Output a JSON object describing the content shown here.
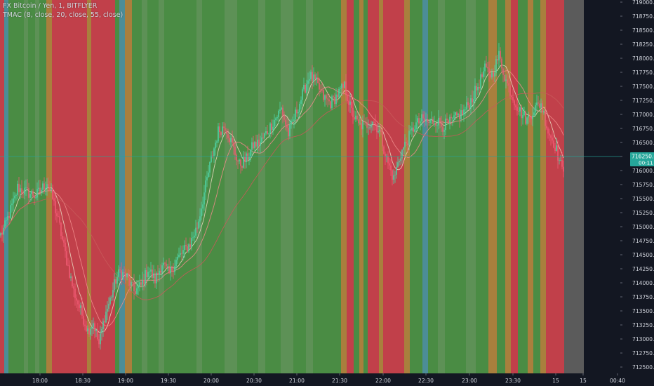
{
  "header": {
    "symbol_line": "FX Bitcoin / Yen, 1, BITFLYER",
    "indicator_line": "TMAC (8, close, 20, close, 55, close)"
  },
  "colors": {
    "background": "#131722",
    "bull_zone": "#4a8c44",
    "bull_zone_light": "#5d9156",
    "bear_zone": "#c1404a",
    "neutral_zone": "#a97f3d",
    "blue_zone": "#4c8d97",
    "empty_zone": "#5b5b5b",
    "candle_up": "#4fd1a3",
    "candle_down": "#ef5a72",
    "ma_fast": "#e8d7bf",
    "ma_mid": "#f08b8b",
    "ma_slow": "#c85a5a",
    "last_price_line": "#26a69a",
    "last_price_badge": "#26a69a",
    "axis_text": "#d1d4dc"
  },
  "price_axis": {
    "labels": [
      "719000.00",
      "718750.00",
      "718500.00",
      "718250.00",
      "718000.00",
      "717750.00",
      "717500.00",
      "717250.00",
      "717000.00",
      "716750.00",
      "716500.00",
      "716250.00",
      "716000.00",
      "715750.00",
      "715500.00",
      "715250.00",
      "715000.00",
      "714750.00",
      "714500.00",
      "714250.00",
      "714000.00",
      "713750.00",
      "713500.00",
      "713250.00",
      "713000.00",
      "712750.00",
      "712500.00"
    ],
    "last_price": "716250.00",
    "countdown": "00:11"
  },
  "time_axis": {
    "labels": [
      "18:00",
      "18:30",
      "19:00",
      "19:30",
      "20:00",
      "20:30",
      "21:00",
      "21:30",
      "22:00",
      "22:30",
      "23:00",
      "23:30",
      "15",
      "15",
      "00:40"
    ]
  },
  "chart_data": {
    "type": "candlestick",
    "title": "FX Bitcoin / Yen, 1, BITFLYER",
    "indicator": "TMAC (8, close, 20, close, 55, close)",
    "timeframe_minutes": 1,
    "ylim": [
      712400,
      719100
    ],
    "grid": false,
    "legend_position": "top-left",
    "anchors": [
      [
        "17:35",
        714850
      ],
      [
        "17:38",
        715000
      ],
      [
        "17:42",
        715300
      ],
      [
        "17:45",
        715500
      ],
      [
        "17:47",
        715700
      ],
      [
        "17:50",
        715650
      ],
      [
        "17:55",
        715600
      ],
      [
        "18:00",
        715550
      ],
      [
        "18:05",
        715700
      ],
      [
        "18:08",
        715800
      ],
      [
        "18:12",
        715500
      ],
      [
        "18:17",
        715000
      ],
      [
        "18:22",
        714400
      ],
      [
        "18:27",
        713850
      ],
      [
        "18:32",
        713500
      ],
      [
        "18:37",
        713150
      ],
      [
        "18:41",
        713300
      ],
      [
        "18:45",
        712900
      ],
      [
        "18:49",
        713400
      ],
      [
        "18:53",
        713700
      ],
      [
        "18:57",
        714050
      ],
      [
        "19:00",
        714200
      ],
      [
        "19:05",
        714100
      ],
      [
        "19:10",
        713850
      ],
      [
        "19:15",
        713950
      ],
      [
        "19:20",
        714250
      ],
      [
        "19:25",
        714050
      ],
      [
        "19:30",
        714350
      ],
      [
        "19:35",
        714150
      ],
      [
        "19:40",
        714400
      ],
      [
        "19:45",
        714550
      ],
      [
        "19:50",
        714700
      ],
      [
        "19:55",
        715000
      ],
      [
        "20:00",
        715600
      ],
      [
        "20:05",
        716200
      ],
      [
        "20:10",
        716700
      ],
      [
        "20:15",
        716800
      ],
      [
        "20:20",
        716450
      ],
      [
        "20:25",
        716100
      ],
      [
        "20:30",
        716200
      ],
      [
        "20:35",
        716450
      ],
      [
        "20:40",
        716500
      ],
      [
        "20:45",
        716700
      ],
      [
        "20:50",
        716900
      ],
      [
        "20:55",
        717100
      ],
      [
        "21:00",
        716650
      ],
      [
        "21:05",
        717000
      ],
      [
        "21:10",
        717350
      ],
      [
        "21:15",
        717700
      ],
      [
        "21:20",
        717550
      ],
      [
        "21:25",
        717300
      ],
      [
        "21:30",
        717200
      ],
      [
        "21:35",
        717350
      ],
      [
        "21:40",
        717500
      ],
      [
        "21:45",
        717050
      ],
      [
        "21:50",
        716800
      ],
      [
        "21:55",
        716800
      ],
      [
        "22:00",
        716900
      ],
      [
        "22:05",
        716700
      ],
      [
        "22:10",
        716200
      ],
      [
        "22:15",
        715850
      ],
      [
        "22:20",
        716300
      ],
      [
        "22:25",
        716550
      ],
      [
        "22:30",
        716800
      ],
      [
        "22:35",
        716900
      ],
      [
        "22:40",
        716850
      ],
      [
        "22:45",
        716900
      ],
      [
        "22:50",
        716800
      ],
      [
        "22:55",
        716850
      ],
      [
        "23:00",
        716950
      ],
      [
        "23:05",
        717050
      ],
      [
        "23:10",
        717250
      ],
      [
        "23:15",
        717500
      ],
      [
        "23:20",
        717800
      ],
      [
        "23:25",
        717700
      ],
      [
        "23:30",
        718050
      ],
      [
        "23:35",
        717600
      ],
      [
        "23:40",
        717300
      ],
      [
        "23:45",
        717050
      ],
      [
        "23:50",
        716900
      ],
      [
        "23:55",
        717100
      ],
      [
        "00:00",
        717200
      ],
      [
        "00:05",
        716700
      ],
      [
        "00:10",
        716450
      ],
      [
        "00:15",
        716000
      ],
      [
        "00:16",
        716050
      ]
    ],
    "zones": [
      {
        "start": "17:35",
        "end": "17:38",
        "state": "bear"
      },
      {
        "start": "17:38",
        "end": "17:41",
        "state": "blue"
      },
      {
        "start": "17:41",
        "end": "17:52",
        "state": "bull"
      },
      {
        "start": "17:52",
        "end": "17:55",
        "state": "bull_light"
      },
      {
        "start": "17:55",
        "end": "18:00",
        "state": "bull"
      },
      {
        "start": "18:00",
        "end": "18:03",
        "state": "bull_light"
      },
      {
        "start": "18:03",
        "end": "18:08",
        "state": "bull"
      },
      {
        "start": "18:08",
        "end": "18:12",
        "state": "neutral"
      },
      {
        "start": "18:12",
        "end": "18:37",
        "state": "bear"
      },
      {
        "start": "18:37",
        "end": "18:40",
        "state": "neutral"
      },
      {
        "start": "18:40",
        "end": "18:57",
        "state": "bear"
      },
      {
        "start": "18:57",
        "end": "19:00",
        "state": "bull"
      },
      {
        "start": "19:00",
        "end": "19:04",
        "state": "blue"
      },
      {
        "start": "19:04",
        "end": "19:09",
        "state": "neutral"
      },
      {
        "start": "19:09",
        "end": "19:16",
        "state": "bull"
      },
      {
        "start": "19:16",
        "end": "19:20",
        "state": "bull_light"
      },
      {
        "start": "19:20",
        "end": "19:28",
        "state": "bull"
      },
      {
        "start": "19:28",
        "end": "19:32",
        "state": "bull_light"
      },
      {
        "start": "19:32",
        "end": "19:55",
        "state": "bull"
      },
      {
        "start": "19:55",
        "end": "19:59",
        "state": "bull_light"
      },
      {
        "start": "19:59",
        "end": "20:15",
        "state": "bull"
      },
      {
        "start": "20:15",
        "end": "20:24",
        "state": "bull_light"
      },
      {
        "start": "20:24",
        "end": "20:39",
        "state": "bull"
      },
      {
        "start": "20:39",
        "end": "20:44",
        "state": "bull_light"
      },
      {
        "start": "20:44",
        "end": "20:55",
        "state": "bull"
      },
      {
        "start": "20:55",
        "end": "21:04",
        "state": "bull_light"
      },
      {
        "start": "21:04",
        "end": "21:13",
        "state": "bull"
      },
      {
        "start": "21:13",
        "end": "21:18",
        "state": "bull_light"
      },
      {
        "start": "21:18",
        "end": "21:38",
        "state": "bull"
      },
      {
        "start": "21:38",
        "end": "21:42",
        "state": "neutral"
      },
      {
        "start": "21:42",
        "end": "21:47",
        "state": "bear"
      },
      {
        "start": "21:47",
        "end": "21:51",
        "state": "bull"
      },
      {
        "start": "21:51",
        "end": "21:54",
        "state": "neutral"
      },
      {
        "start": "21:54",
        "end": "21:57",
        "state": "bull"
      },
      {
        "start": "21:57",
        "end": "22:05",
        "state": "bear"
      },
      {
        "start": "22:05",
        "end": "22:08",
        "state": "neutral"
      },
      {
        "start": "22:08",
        "end": "22:23",
        "state": "bear"
      },
      {
        "start": "22:23",
        "end": "22:27",
        "state": "neutral"
      },
      {
        "start": "22:27",
        "end": "22:36",
        "state": "bull"
      },
      {
        "start": "22:36",
        "end": "22:40",
        "state": "blue"
      },
      {
        "start": "22:40",
        "end": "22:47",
        "state": "bull"
      },
      {
        "start": "22:47",
        "end": "22:52",
        "state": "bull_light"
      },
      {
        "start": "22:52",
        "end": "23:07",
        "state": "bull"
      },
      {
        "start": "23:07",
        "end": "23:14",
        "state": "bull_light"
      },
      {
        "start": "23:14",
        "end": "23:23",
        "state": "bull"
      },
      {
        "start": "23:23",
        "end": "23:29",
        "state": "neutral"
      },
      {
        "start": "23:29",
        "end": "23:35",
        "state": "bull"
      },
      {
        "start": "23:35",
        "end": "23:39",
        "state": "neutral"
      },
      {
        "start": "23:39",
        "end": "23:44",
        "state": "bear"
      },
      {
        "start": "23:44",
        "end": "23:51",
        "state": "bull"
      },
      {
        "start": "23:51",
        "end": "23:55",
        "state": "neutral"
      },
      {
        "start": "23:55",
        "end": "00:00",
        "state": "bull"
      },
      {
        "start": "00:00",
        "end": "00:04",
        "state": "neutral"
      },
      {
        "start": "00:04",
        "end": "00:17",
        "state": "bear"
      },
      {
        "start": "00:17",
        "end": "00:31",
        "state": "empty"
      }
    ],
    "moving_averages": [
      {
        "period": 8,
        "source": "close",
        "color_key": "ma_fast"
      },
      {
        "period": 20,
        "source": "close",
        "color_key": "ma_mid"
      },
      {
        "period": 55,
        "source": "close",
        "color_key": "ma_slow"
      }
    ]
  }
}
